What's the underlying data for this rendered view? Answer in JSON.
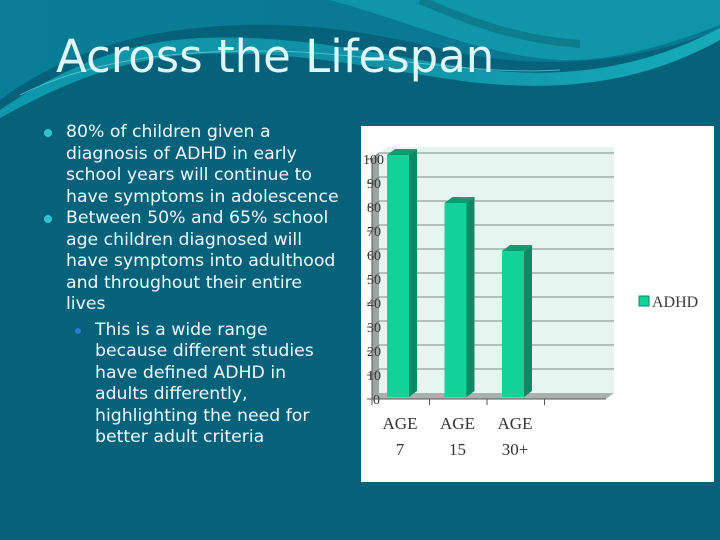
{
  "slide": {
    "title": "Across the Lifespan",
    "bullets": [
      {
        "level": 1,
        "text": "80% of children given a diagnosis of ADHD in early school years will continue to have symptoms in adolescence"
      },
      {
        "level": 1,
        "text": "Between 50% and 65% school age children diagnosed will have symptoms into adulthood and throughout their entire lives"
      },
      {
        "level": 2,
        "text": "This is a wide range because different studies have defined ADHD in adults differently, highlighting the need for better adult criteria"
      }
    ]
  },
  "colors": {
    "background": "#06627a",
    "bar_front": "#14d19a",
    "bar_side": "#0d8a63",
    "plot_bg": "#e6f5ef",
    "title": "#dff6f8"
  },
  "chart_data": {
    "type": "bar",
    "title": "",
    "categories": [
      "AGE 7",
      "AGE 15",
      "AGE 30+"
    ],
    "category_lines": [
      [
        "AGE",
        "7"
      ],
      [
        "AGE",
        "15"
      ],
      [
        "AGE",
        "30+"
      ]
    ],
    "series": [
      {
        "name": "ADHD",
        "values": [
          100,
          80,
          60
        ]
      }
    ],
    "xlabel": "",
    "ylabel": "",
    "ylim": [
      0,
      100
    ],
    "yticks": [
      "0",
      "10",
      "20",
      "30",
      "40",
      "50",
      "60",
      "70",
      "80",
      "90",
      "100"
    ],
    "grid": true,
    "legend_position": "right",
    "style": "3d-column"
  }
}
